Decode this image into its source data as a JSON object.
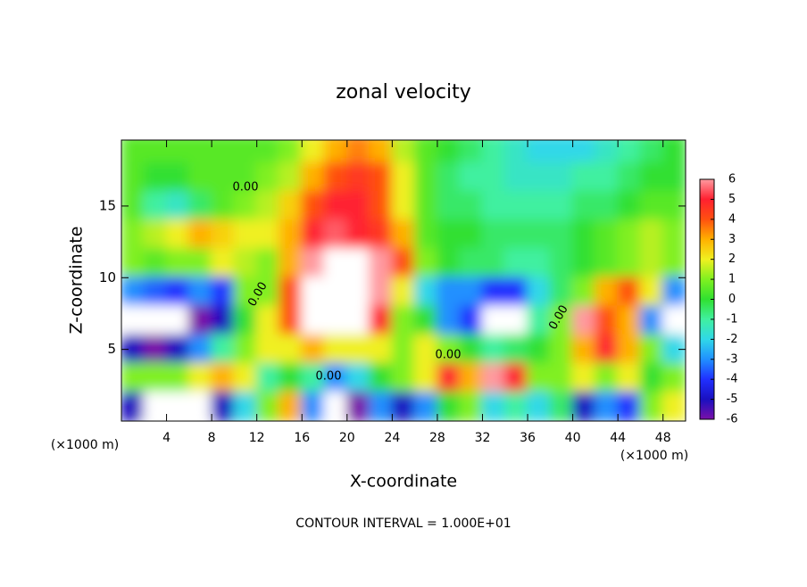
{
  "chart_data": {
    "type": "contour",
    "title": "zonal velocity",
    "xlabel": "X-coordinate",
    "ylabel": "Z-coordinate",
    "x_unit": "(×1000 m)",
    "footer": "CONTOUR INTERVAL = 1.000E+01",
    "contour_label": "0.00",
    "xlim": [
      0,
      50
    ],
    "ylim": [
      0,
      19.6
    ],
    "xticks": [
      4,
      8,
      12,
      16,
      20,
      24,
      28,
      32,
      36,
      40,
      44,
      48
    ],
    "yticks": [
      5,
      10,
      15
    ],
    "x": [
      1,
      3,
      5,
      7,
      9,
      11,
      13,
      15,
      17,
      19,
      21,
      23,
      25,
      27,
      29,
      31,
      33,
      35,
      37,
      39,
      41,
      43,
      45,
      47,
      49
    ],
    "y": [
      19,
      17,
      15,
      13,
      11,
      9,
      7,
      5,
      3,
      1
    ],
    "z": [
      [
        0.5,
        0.5,
        0.5,
        0.5,
        0.5,
        0.5,
        0.5,
        1,
        2,
        3,
        3.5,
        3,
        1.5,
        0.5,
        0,
        -0.5,
        -1,
        -1.5,
        -2,
        -2,
        -2,
        -1.5,
        -1,
        -0.5,
        0
      ],
      [
        0.5,
        0,
        0,
        0.5,
        0.5,
        0.5,
        1,
        1.5,
        3,
        4,
        4.5,
        4,
        2,
        0.5,
        -0.5,
        -1,
        -1,
        -1.5,
        -1.5,
        -1.5,
        -1,
        -1,
        -0.5,
        0,
        0
      ],
      [
        0.5,
        -1,
        -1.5,
        -0.5,
        0.5,
        1,
        1.5,
        2.5,
        4,
        5,
        5,
        4,
        2,
        0.5,
        -0.5,
        -0.5,
        -1,
        -1,
        -1,
        -1,
        -0.5,
        -0.5,
        0,
        0.5,
        0.5
      ],
      [
        1,
        1.5,
        2,
        3,
        2.5,
        2,
        2,
        3,
        5,
        5.5,
        5,
        4.5,
        3,
        0.5,
        0,
        0,
        -0.5,
        -0.5,
        -0.5,
        -0.5,
        0,
        0.5,
        1,
        1.5,
        1
      ],
      [
        1,
        0.5,
        1,
        1,
        2,
        1.5,
        1,
        3,
        6,
        7,
        7,
        6,
        4,
        1,
        0,
        -0.5,
        -0.5,
        -1,
        -1,
        -0.5,
        0,
        0.5,
        1,
        1.5,
        1
      ],
      [
        -3,
        -3.5,
        -4,
        -3,
        -4,
        1,
        1,
        4,
        7,
        8,
        7,
        6,
        2,
        -2,
        -3,
        -3,
        -4,
        -4,
        -2,
        -0.5,
        1,
        3,
        4,
        2,
        -3
      ],
      [
        -7,
        -7,
        -7,
        -6,
        -5,
        0,
        2,
        4,
        7,
        8,
        7.5,
        5,
        1,
        0,
        -3,
        -4,
        -7,
        -8,
        -1,
        1,
        6,
        4,
        3,
        -3,
        -7
      ],
      [
        -5,
        -6,
        -5,
        -3,
        -1,
        1,
        2,
        2,
        3,
        2,
        2,
        2,
        1,
        2,
        1,
        0,
        -1,
        -0.5,
        0,
        1,
        3,
        5,
        3,
        1,
        -2
      ],
      [
        1,
        1,
        1,
        2,
        3,
        2,
        -1,
        0,
        -1,
        -3,
        -2,
        0,
        1,
        2,
        5,
        3,
        6,
        5,
        1,
        1,
        2,
        1,
        2,
        0,
        1
      ],
      [
        -5,
        -7,
        -7,
        -7,
        -5,
        -2,
        1,
        3,
        -3,
        -7,
        -6,
        -3,
        -5,
        -3,
        0,
        1,
        -2,
        -1,
        -2,
        -0.5,
        -5,
        -3,
        -4,
        1,
        2
      ]
    ],
    "colorbar": {
      "lim": [
        -6,
        6
      ],
      "ticks": [
        -6,
        -5,
        -4,
        -3,
        -2,
        -1,
        0,
        1,
        2,
        3,
        4,
        5,
        6
      ],
      "colors": [
        "#7a10a8",
        "#1a10c0",
        "#2030ff",
        "#2090ff",
        "#30d8e8",
        "#40f0a0",
        "#30e030",
        "#80f020",
        "#f0f020",
        "#ffb000",
        "#ff5010",
        "#ff2030",
        "#ff9aa0"
      ],
      "out_of_range_color": "#ffffff"
    }
  }
}
